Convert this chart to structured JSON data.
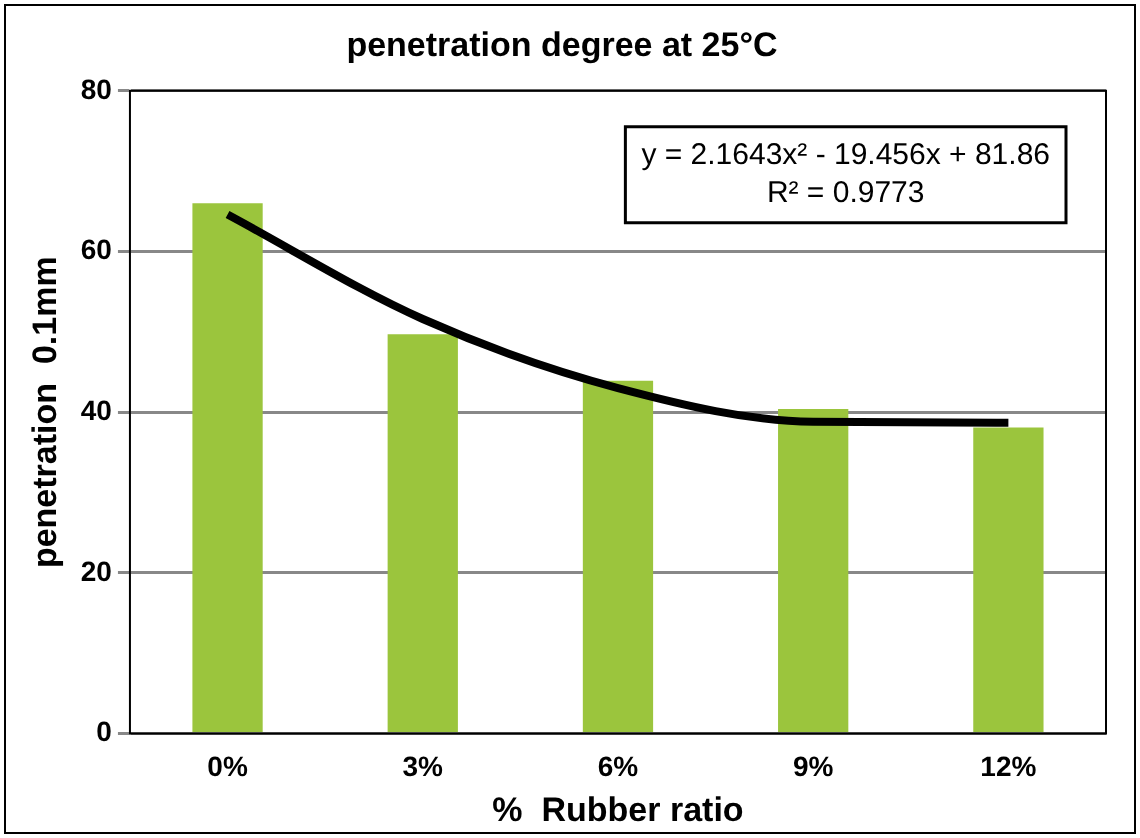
{
  "chart_data": {
    "type": "bar",
    "title": "penetration degree at 25°C",
    "xlabel": "%  Rubber ratio",
    "ylabel": "penetration  0.1mm",
    "categories": [
      "0%",
      "3%",
      "6%",
      "9%",
      "12%"
    ],
    "series": [
      {
        "color": "#9bc53d",
        "values": [
          66,
          49.7,
          43.9,
          40.4,
          38.1
        ]
      },
      {
        "type": "line",
        "color": "#000000",
        "values": [
          64.6,
          51.6,
          43,
          38.8,
          38.7
        ]
      }
    ],
    "ylim": [
      0,
      80
    ],
    "yticks": [
      0,
      20,
      40,
      60,
      80
    ],
    "grid": "y",
    "legend": false,
    "marker": "none",
    "annotations": [
      "y = 2.1643x² - 19.456x + 81.86",
      "R² = 0.9773"
    ]
  }
}
